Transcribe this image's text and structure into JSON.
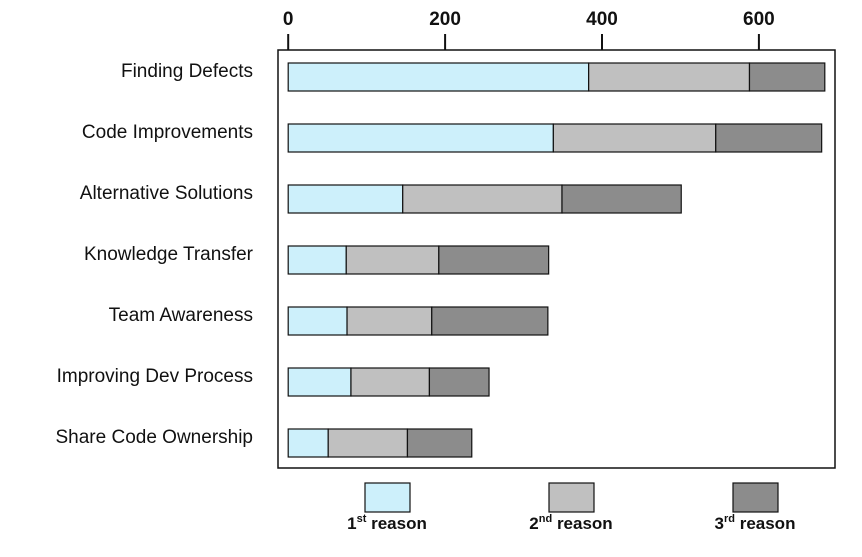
{
  "chart_data": {
    "type": "stacked-barh",
    "categories": [
      "Finding Defects",
      "Code Improvements",
      "Alternative Solutions",
      "Knowledge Transfer",
      "Team Awareness",
      "Improving Dev Process",
      "Share Code Ownership"
    ],
    "series": [
      {
        "name": "1st reason",
        "color": "#cdf0fb",
        "values": [
          383,
          338,
          146,
          74,
          75,
          80,
          51
        ]
      },
      {
        "name": "2nd reason",
        "color": "#c0c0c0",
        "values": [
          205,
          207,
          203,
          118,
          108,
          100,
          101
        ]
      },
      {
        "name": "3rd reason",
        "color": "#8c8c8c",
        "values": [
          96,
          135,
          152,
          140,
          148,
          76,
          82
        ]
      }
    ],
    "xlim": [
      -13,
      697
    ],
    "xticks": [
      0,
      200,
      400,
      600
    ]
  }
}
